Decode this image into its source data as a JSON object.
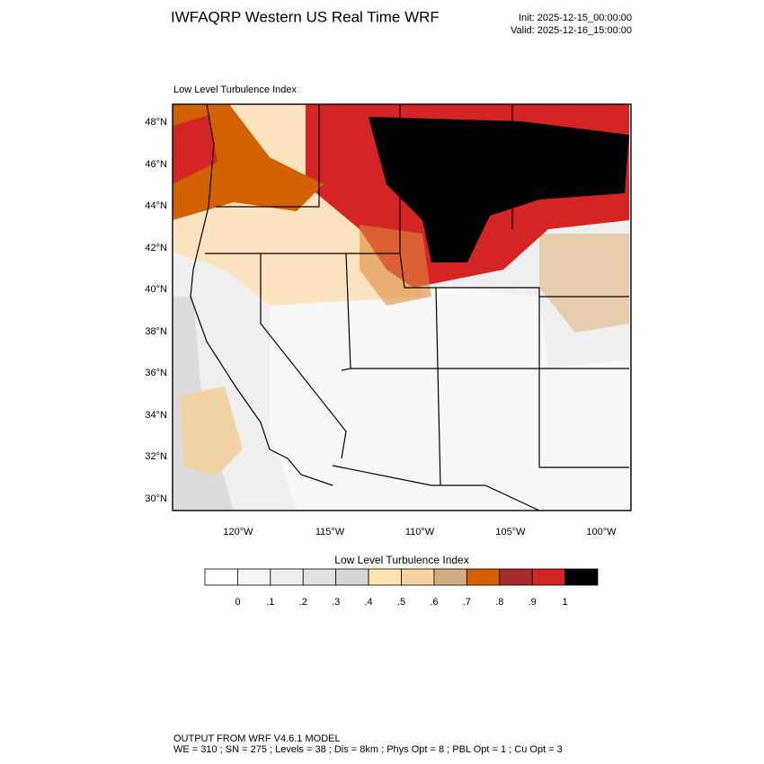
{
  "header": {
    "title": "IWFAQRP Western US Real Time WRF",
    "init": "Init: 2025-12-15_00:00:00",
    "valid": "Valid: 2025-12-16_15:00:00"
  },
  "map": {
    "title": "Low Level Turbulence Index",
    "lat_labels": [
      "48°N",
      "46°N",
      "44°N",
      "42°N",
      "40°N",
      "38°N",
      "36°N",
      "34°N",
      "32°N",
      "30°N"
    ],
    "lon_labels": [
      "120°W",
      "115°W",
      "110°W",
      "105°W",
      "100°W"
    ]
  },
  "colorbar": {
    "title": "Low Level Turbulence Index",
    "labels": [
      "0",
      ".1",
      ".2",
      ".3",
      ".4",
      ".5",
      ".6",
      ".7",
      ".8",
      ".9",
      "1"
    ],
    "colors": [
      "#ffffff",
      "#f6f6f6",
      "#eeeeee",
      "#e2e2e2",
      "#d6d6d6",
      "#ffe4b2",
      "#f6d3a0",
      "#d2ac84",
      "#d26200",
      "#a82c2c",
      "#d42424",
      "#000000"
    ]
  },
  "footer": {
    "line1": "OUTPUT FROM WRF V4.6.1 MODEL",
    "line2": "WE = 310 ; SN = 275 ; Levels = 38 ; Dis = 8km ; Phys Opt = 8 ; PBL Opt = 1 ; Cu Opt = 3"
  }
}
